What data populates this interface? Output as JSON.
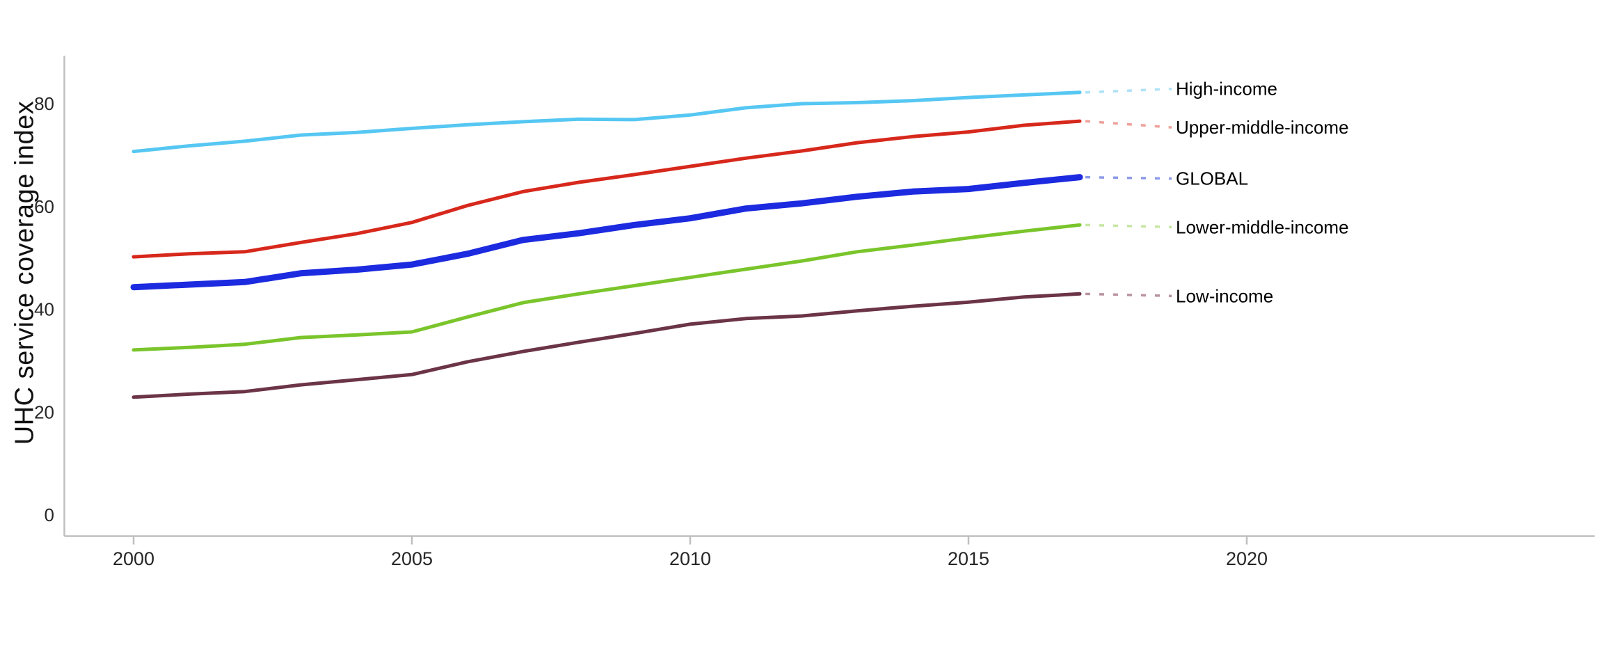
{
  "page": {
    "background": "#ffffff"
  },
  "axes": {
    "line_color": "#bfbfbf",
    "tick_text_color": "#262626",
    "series_label_color": "#000000",
    "y_axis_title_color": "#111111"
  },
  "chart_data": {
    "type": "line",
    "title": "",
    "xlabel": "",
    "ylabel": "UHC service coverage index",
    "grid": false,
    "legend_position": "right-end-labels",
    "xlim": [
      1998.75,
      2026.25
    ],
    "ylim": [
      0,
      89
    ],
    "x_ticks": [
      2000,
      2005,
      2010,
      2015,
      2020
    ],
    "y_ticks": [
      0,
      20,
      40,
      60,
      80
    ],
    "x": [
      2000,
      2001,
      2002,
      2003,
      2004,
      2005,
      2006,
      2007,
      2008,
      2009,
      2010,
      2011,
      2012,
      2013,
      2014,
      2015,
      2016,
      2017
    ],
    "series": [
      {
        "name": "High-income",
        "color": "#56c7f2",
        "leader_color": "#ace2f8",
        "line_width": 5,
        "values": [
          70.7,
          71.8,
          72.7,
          73.9,
          74.4,
          75.2,
          75.9,
          76.5,
          77.0,
          76.9,
          77.8,
          79.2,
          80.0,
          80.2,
          80.6,
          81.2,
          81.7,
          82.2
        ]
      },
      {
        "name": "Upper-middle-income",
        "color": "#d7281c",
        "leader_color": "#efa09a",
        "line_width": 5,
        "values": [
          50.2,
          50.8,
          51.2,
          53.0,
          54.7,
          56.9,
          60.2,
          62.9,
          64.7,
          66.2,
          67.8,
          69.4,
          70.8,
          72.4,
          73.6,
          74.5,
          75.8,
          76.6
        ]
      },
      {
        "name": "GLOBAL",
        "color": "#1c2ae0",
        "leader_color": "#8d9ae9",
        "line_width": 9,
        "values": [
          44.3,
          44.8,
          45.3,
          47.0,
          47.7,
          48.7,
          50.8,
          53.5,
          54.8,
          56.4,
          57.7,
          59.6,
          60.6,
          61.9,
          62.9,
          63.4,
          64.6,
          65.7
        ]
      },
      {
        "name": "Lower-middle-income",
        "color": "#7ac52b",
        "leader_color": "#c6e6a1",
        "line_width": 5,
        "values": [
          32.1,
          32.6,
          33.2,
          34.5,
          35.0,
          35.6,
          38.5,
          41.3,
          43.0,
          44.6,
          46.2,
          47.8,
          49.4,
          51.2,
          52.5,
          53.9,
          55.2,
          56.4
        ]
      },
      {
        "name": "Low-income",
        "color": "#6b3447",
        "leader_color": "#b9939e",
        "line_width": 5,
        "values": [
          22.9,
          23.5,
          24.0,
          25.3,
          26.3,
          27.3,
          29.8,
          31.8,
          33.6,
          35.3,
          37.1,
          38.2,
          38.7,
          39.7,
          40.6,
          41.4,
          42.4,
          43.0
        ]
      }
    ],
    "label_offsets": [
      -5,
      9,
      2,
      3,
      3
    ]
  }
}
